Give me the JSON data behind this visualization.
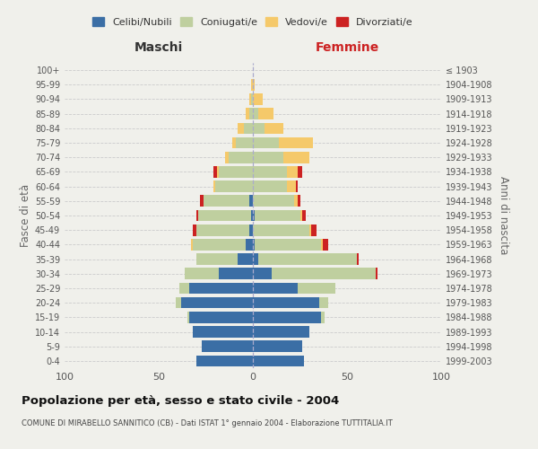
{
  "age_groups": [
    "0-4",
    "5-9",
    "10-14",
    "15-19",
    "20-24",
    "25-29",
    "30-34",
    "35-39",
    "40-44",
    "45-49",
    "50-54",
    "55-59",
    "60-64",
    "65-69",
    "70-74",
    "75-79",
    "80-84",
    "85-89",
    "90-94",
    "95-99",
    "100+"
  ],
  "birth_years": [
    "1999-2003",
    "1994-1998",
    "1989-1993",
    "1984-1988",
    "1979-1983",
    "1974-1978",
    "1969-1973",
    "1964-1968",
    "1959-1963",
    "1954-1958",
    "1949-1953",
    "1944-1948",
    "1939-1943",
    "1934-1938",
    "1929-1933",
    "1924-1928",
    "1919-1923",
    "1914-1918",
    "1909-1913",
    "1904-1908",
    "≤ 1903"
  ],
  "maschi": {
    "celibi": [
      30,
      27,
      32,
      34,
      38,
      34,
      18,
      8,
      4,
      2,
      1,
      2,
      0,
      0,
      0,
      0,
      0,
      0,
      0,
      0,
      0
    ],
    "coniugati": [
      0,
      0,
      0,
      1,
      3,
      5,
      18,
      22,
      28,
      28,
      28,
      24,
      20,
      18,
      13,
      9,
      5,
      2,
      1,
      0,
      0
    ],
    "vedovi": [
      0,
      0,
      0,
      0,
      0,
      0,
      0,
      0,
      1,
      0,
      0,
      0,
      1,
      1,
      2,
      2,
      3,
      2,
      1,
      1,
      0
    ],
    "divorziati": [
      0,
      0,
      0,
      0,
      0,
      0,
      0,
      0,
      0,
      2,
      1,
      2,
      0,
      2,
      0,
      0,
      0,
      0,
      0,
      0,
      0
    ]
  },
  "femmine": {
    "nubili": [
      27,
      26,
      30,
      36,
      35,
      24,
      10,
      3,
      1,
      0,
      1,
      0,
      0,
      0,
      0,
      0,
      0,
      0,
      0,
      0,
      0
    ],
    "coniugate": [
      0,
      0,
      0,
      2,
      5,
      20,
      55,
      52,
      35,
      30,
      24,
      22,
      18,
      18,
      16,
      14,
      6,
      3,
      0,
      0,
      0
    ],
    "vedove": [
      0,
      0,
      0,
      0,
      0,
      0,
      0,
      0,
      1,
      1,
      1,
      2,
      5,
      6,
      14,
      18,
      10,
      8,
      5,
      1,
      0
    ],
    "divorziate": [
      0,
      0,
      0,
      0,
      0,
      0,
      1,
      1,
      3,
      3,
      2,
      1,
      1,
      2,
      0,
      0,
      0,
      0,
      0,
      0,
      0
    ]
  },
  "colors": {
    "celibi_nubili": "#3B6EA5",
    "coniugati": "#BFCF9F",
    "vedovi": "#F5C96A",
    "divorziati": "#CC2222"
  },
  "xlim": 100,
  "title": "Popolazione per età, sesso e stato civile - 2004",
  "subtitle": "COMUNE DI MIRABELLO SANNITICO (CB) - Dati ISTAT 1° gennaio 2004 - Elaborazione TUTTITALIA.IT",
  "ylabel_left": "Fasce di età",
  "ylabel_right": "Anni di nascita",
  "xlabel_left": "Maschi",
  "xlabel_right": "Femmine",
  "legend_labels": [
    "Celibi/Nubili",
    "Coniugati/e",
    "Vedovi/e",
    "Divorziati/e"
  ],
  "bg_color": "#f0f0eb"
}
